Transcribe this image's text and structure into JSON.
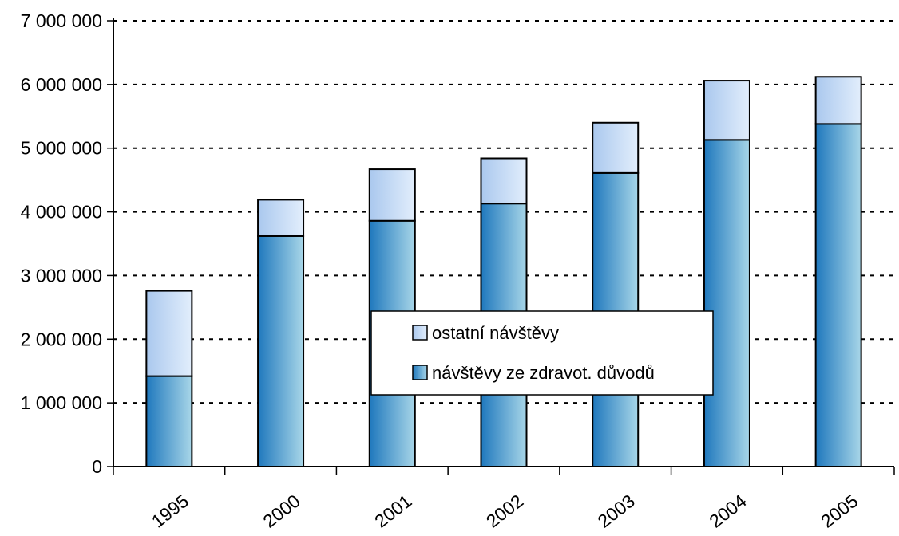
{
  "chart_data": {
    "type": "bar",
    "stacked": true,
    "categories": [
      "1995",
      "2000",
      "2001",
      "2002",
      "2003",
      "2004",
      "2005"
    ],
    "series": [
      {
        "name": "návštěvy ze zdravot. důvodů",
        "values": [
          1420000,
          3620000,
          3860000,
          4130000,
          4610000,
          5130000,
          5380000
        ]
      },
      {
        "name": "ostatní návštěvy",
        "values": [
          1340000,
          570000,
          810000,
          710000,
          790000,
          930000,
          740000
        ]
      }
    ],
    "ylim": [
      0,
      7000000
    ],
    "yticks": [
      "0",
      "1 000 000",
      "2 000 000",
      "3 000 000",
      "4 000 000",
      "5 000 000",
      "6 000 000",
      "7 000 000"
    ],
    "ytick_values": [
      0,
      1000000,
      2000000,
      3000000,
      4000000,
      5000000,
      6000000,
      7000000
    ],
    "grid": "horizontal-dotted",
    "legend_position": "center",
    "colors": {
      "bottom_dark": "#1f78bd",
      "bottom_light": "#a8d6e8",
      "top_dark": "#aac8ee",
      "top_light": "#e2eefc"
    }
  }
}
